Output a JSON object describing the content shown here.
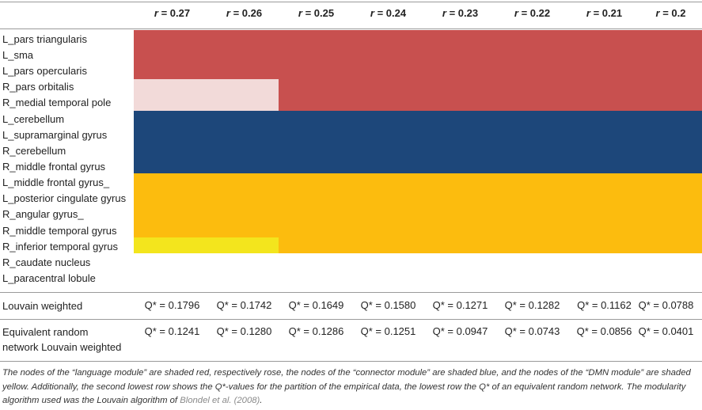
{
  "colors": {
    "language": "#c8504f",
    "language_rose": "#f2dad9",
    "connector": "#1d477a",
    "dmn": "#fcbc0e",
    "dmn_light": "#f3e51d"
  },
  "header": {
    "r_symbol": "r",
    "columns": [
      "= 0.27",
      "= 0.26",
      "= 0.25",
      "= 0.24",
      "= 0.23",
      "= 0.22",
      "= 0.21",
      "= 0.2"
    ]
  },
  "rows": [
    "L_pars triangularis",
    "L_sma",
    "L_pars opercularis",
    "R_pars orbitalis",
    "R_medial temporal pole",
    "L_cerebellum",
    "L_supramarginal gyrus",
    "R_cerebellum",
    "R_middle frontal gyrus",
    "L_middle frontal gyrus_",
    "L_posterior cingulate gyrus",
    "R_angular gyrus_",
    "R_middle temporal gyrus",
    "R_inferior temporal gyrus",
    "R_caudate nucleus",
    "L_paracentral lobule"
  ],
  "louvain": {
    "label": "Louvain weighted",
    "values": [
      "Q* = 0.1796",
      "Q* = 0.1742",
      "Q* = 0.1649",
      "Q* = 0.1580",
      "Q* = 0.1271",
      "Q* = 0.1282",
      "Q* = 0.1162",
      "Q* = 0.0788"
    ]
  },
  "random": {
    "label_line1": "Equivalent random",
    "label_line2": "network Louvain weighted",
    "values": [
      "Q* = 0.1241",
      "Q* = 0.1280",
      "Q* = 0.1286",
      "Q* = 0.1251",
      "Q* = 0.0947",
      "Q* = 0.0743",
      "Q* = 0.0856",
      "Q* = 0.0401"
    ]
  },
  "caption": {
    "text": "The nodes of the “language module” are shaded red, respectively rose, the nodes of the “connector module” are shaded blue, and the nodes of the “DMN module” are shaded yellow. Additionally, the second lowest row shows the Q*-values for the partition of the empirical data, the lowest row the Q* of an equivalent random network. The modularity algorithm used was the Louvain algorithm of ",
    "citation": "Blondel et al. (2008)",
    "end": "."
  }
}
